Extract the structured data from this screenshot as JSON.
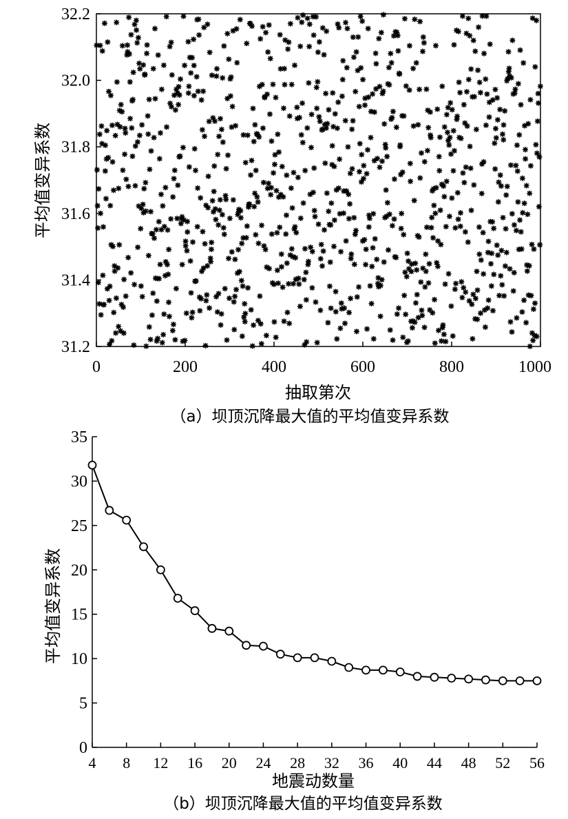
{
  "chart_data": [
    {
      "type": "scatter",
      "caption": "（a）坝顶沉降最大值的平均值变异系数",
      "xlabel": "抽取第次",
      "ylabel": "平均值变异系数",
      "xlim": [
        0,
        1000
      ],
      "ylim": [
        31.2,
        32.2
      ],
      "xticks": [
        "0",
        "200",
        "400",
        "600",
        "800",
        "1000"
      ],
      "yticks": [
        "31.2",
        "31.4",
        "31.6",
        "31.8",
        "32.0",
        "32.2"
      ],
      "marker": "asterisk",
      "n_points": 1000,
      "distribution": "uniform",
      "grid": false
    },
    {
      "type": "line",
      "caption": "（b）坝顶沉降最大值的平均值变异系数",
      "xlabel": "地震动数量",
      "ylabel": "平均值变异系数",
      "xlim": [
        4,
        56
      ],
      "ylim": [
        0,
        35
      ],
      "xticks": [
        "4",
        "8",
        "12",
        "16",
        "20",
        "24",
        "28",
        "32",
        "36",
        "40",
        "44",
        "48",
        "52",
        "56"
      ],
      "yticks": [
        "0",
        "5",
        "10",
        "15",
        "20",
        "25",
        "30",
        "35"
      ],
      "marker": "circle",
      "grid": false,
      "x": [
        4,
        6,
        8,
        10,
        12,
        14,
        16,
        18,
        20,
        22,
        24,
        26,
        28,
        30,
        32,
        34,
        36,
        38,
        40,
        42,
        44,
        46,
        48,
        50,
        52,
        54,
        56
      ],
      "values": [
        31.8,
        26.7,
        25.6,
        22.6,
        20.0,
        16.8,
        15.4,
        13.4,
        13.1,
        11.5,
        11.4,
        10.5,
        10.1,
        10.1,
        9.7,
        9.0,
        8.7,
        8.7,
        8.5,
        8.0,
        7.9,
        7.8,
        7.7,
        7.6,
        7.5,
        7.5,
        7.5
      ]
    }
  ]
}
